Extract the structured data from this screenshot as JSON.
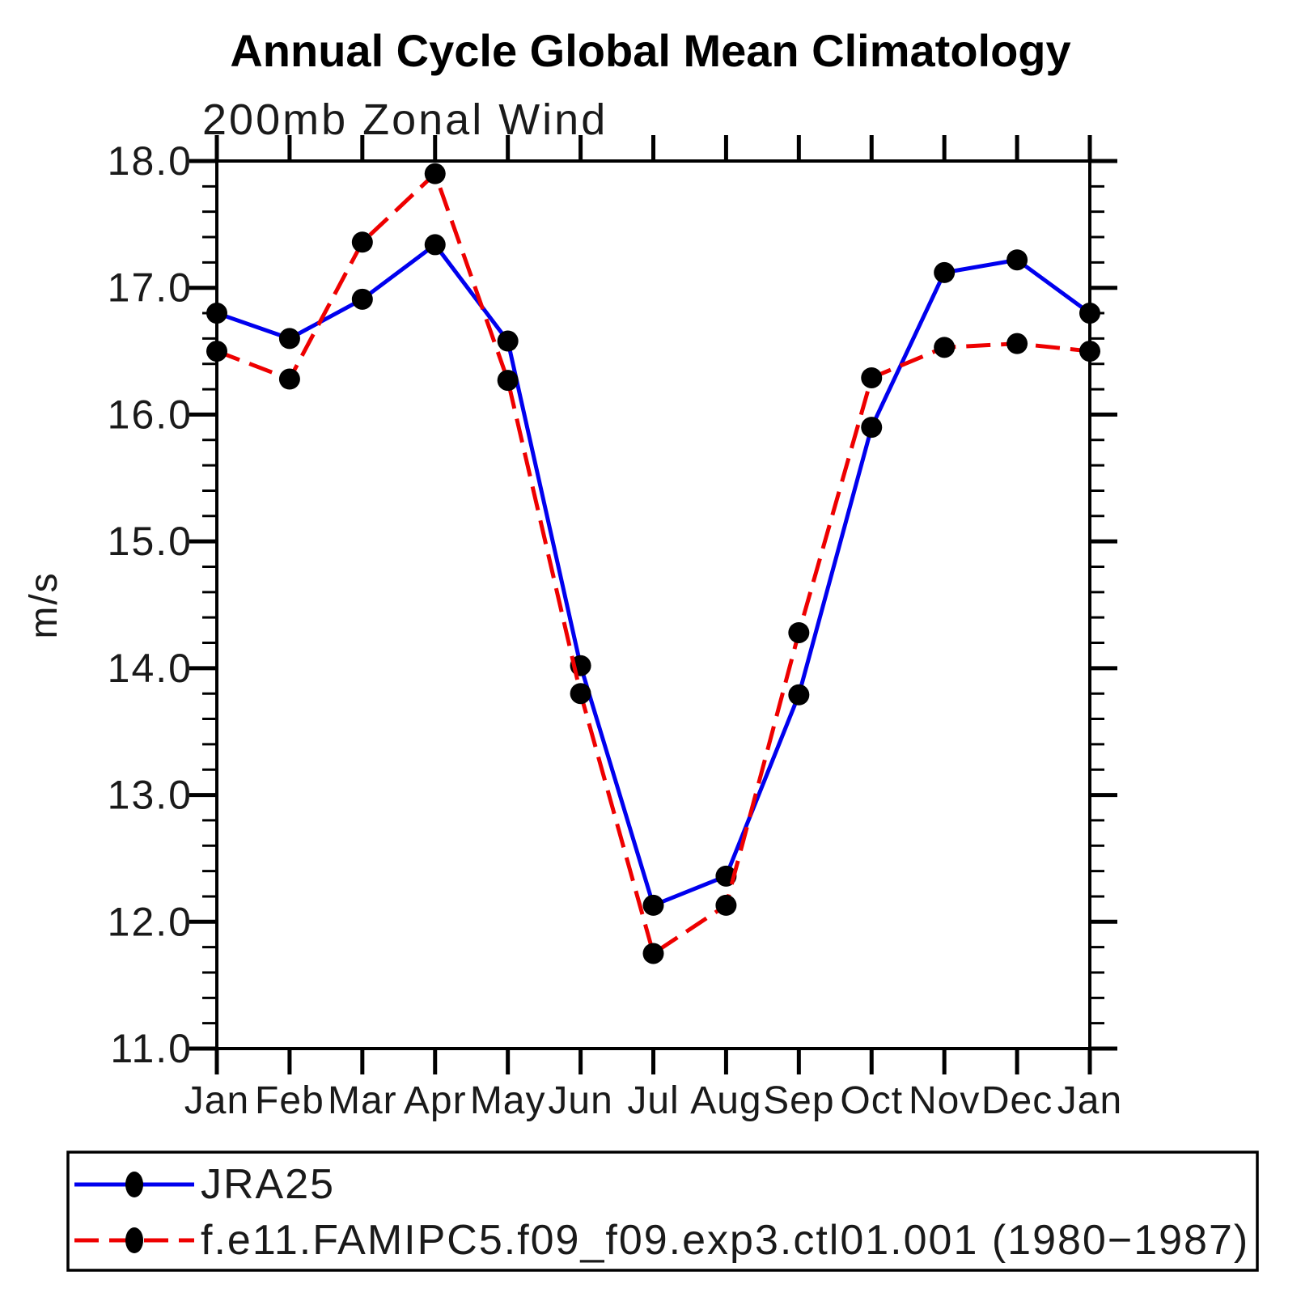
{
  "title": "Annual Cycle Global Mean Climatology",
  "subtitle": "200mb Zonal Wind",
  "ylabel": "m/s",
  "colors": {
    "jra25_line": "#0000ee",
    "model_line": "#ee0000",
    "marker": "#000000",
    "axis": "#000000",
    "background": "#ffffff"
  },
  "chart_data": {
    "type": "line",
    "title": "Annual Cycle Global Mean Climatology",
    "subtitle": "200mb Zonal Wind",
    "xlabel": "",
    "ylabel": "m/s",
    "categories": [
      "Jan",
      "Feb",
      "Mar",
      "Apr",
      "May",
      "Jun",
      "Jul",
      "Aug",
      "Sep",
      "Oct",
      "Nov",
      "Dec",
      "Jan"
    ],
    "ylim": [
      11.0,
      18.0
    ],
    "y_major_step": 1.0,
    "y_minor_step": 0.2,
    "y_tick_labels": [
      "11.0",
      "12.0",
      "13.0",
      "14.0",
      "15.0",
      "16.0",
      "17.0",
      "18.0"
    ],
    "grid": false,
    "legend_position": "bottom",
    "series": [
      {
        "name": "JRA25",
        "color": "#0000ee",
        "line_style": "solid",
        "marker": "circle",
        "marker_color": "#000000",
        "values": [
          16.8,
          16.6,
          16.91,
          17.34,
          16.58,
          14.02,
          12.13,
          12.36,
          13.79,
          15.9,
          17.12,
          17.22,
          16.8
        ]
      },
      {
        "name": "f.e11.FAMIPC5.f09_f09.exp3.ctl01.001 (1980−1987)",
        "color": "#ee0000",
        "line_style": "dashed",
        "marker": "circle",
        "marker_color": "#000000",
        "values": [
          16.5,
          16.28,
          17.36,
          17.9,
          16.27,
          13.8,
          11.75,
          12.13,
          14.28,
          16.29,
          16.53,
          16.56,
          16.5
        ]
      }
    ]
  },
  "legend": {
    "entries": [
      "JRA25",
      "f.e11.FAMIPC5.f09_f09.exp3.ctl01.001 (1980−1987)"
    ]
  }
}
